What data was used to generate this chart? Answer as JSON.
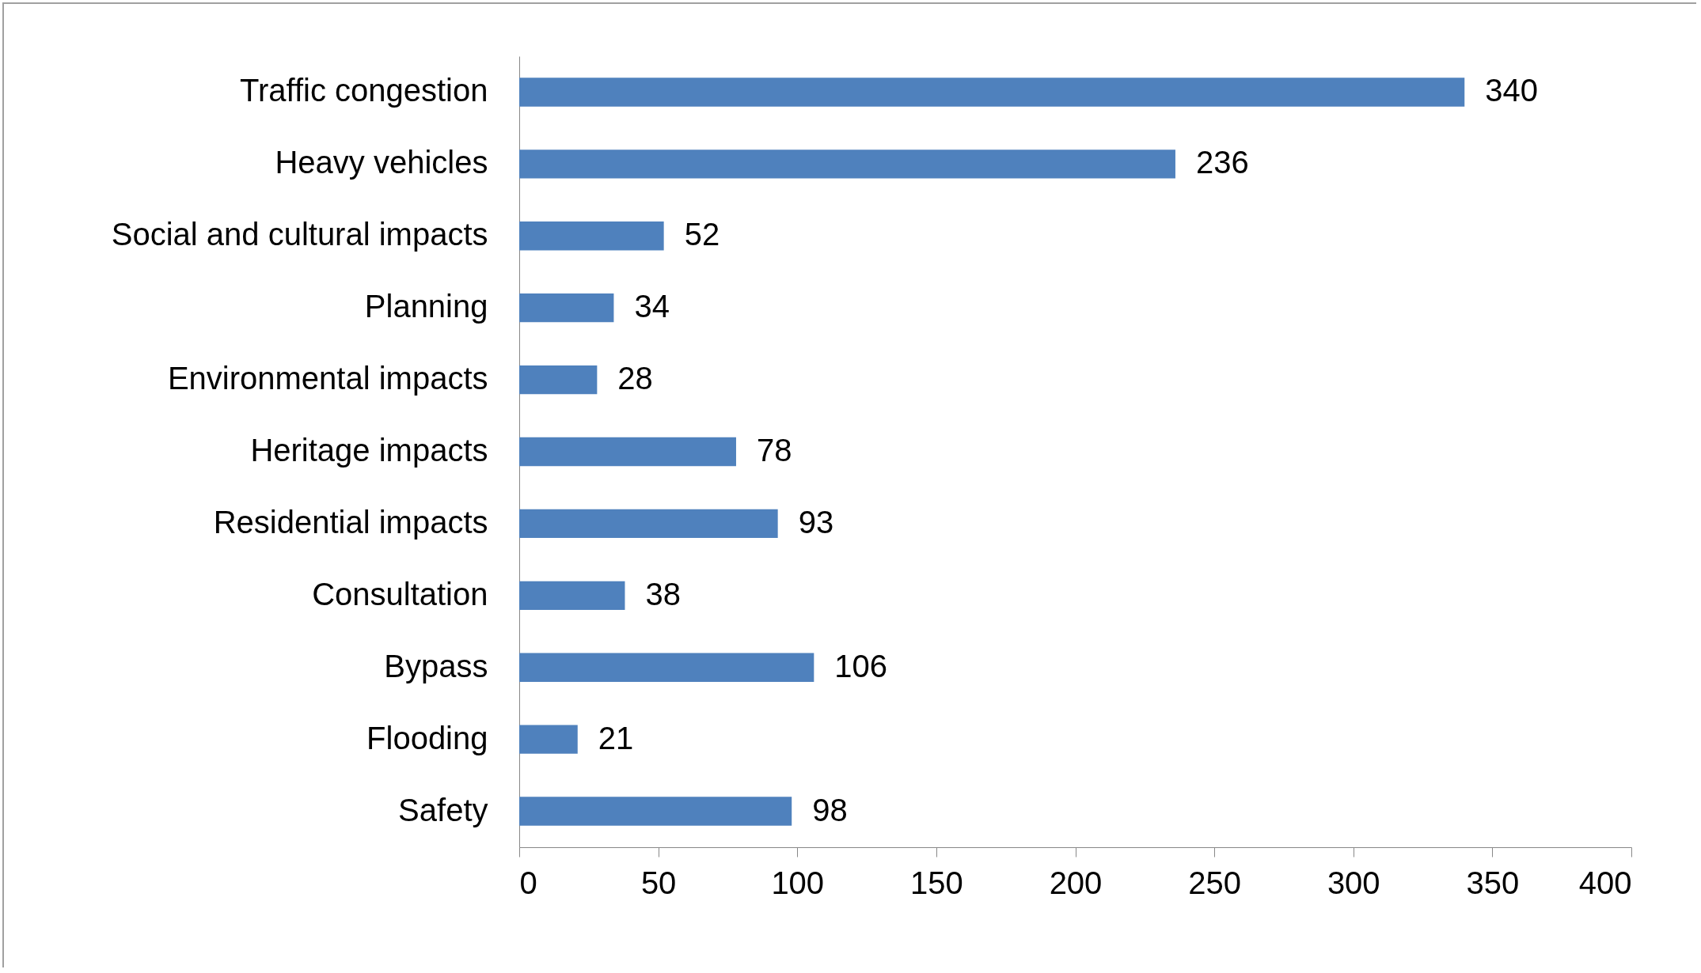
{
  "chart_data": {
    "type": "bar",
    "orientation": "horizontal",
    "categories": [
      "Traffic congestion",
      "Heavy vehicles",
      "Social and cultural impacts",
      "Planning",
      "Environmental impacts",
      "Heritage impacts",
      "Residential impacts",
      "Consultation",
      "Bypass",
      "Flooding",
      "Safety"
    ],
    "values": [
      340,
      236,
      52,
      34,
      28,
      78,
      93,
      38,
      106,
      21,
      98
    ],
    "color": "#4f81bd",
    "xlim": [
      0,
      400
    ],
    "xticks": [
      0,
      50,
      100,
      150,
      200,
      250,
      300,
      350,
      400
    ],
    "data_labels": true,
    "grid": false
  }
}
